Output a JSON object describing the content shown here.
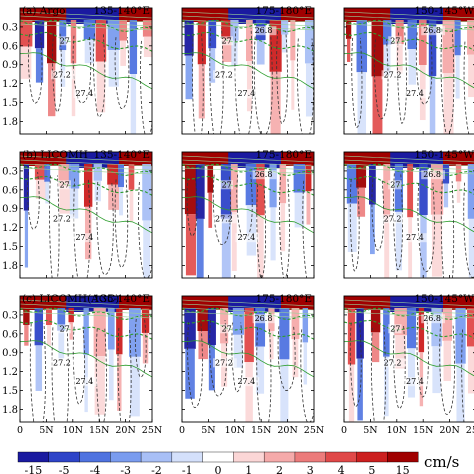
{
  "chart_data": {
    "type": "heatmap",
    "rows": [
      {
        "label": "(a) Argo",
        "contour_labels": [
          "26.8",
          "27",
          "27.2",
          "27.4"
        ]
      },
      {
        "label": "(b) LICOMH",
        "contour_labels": [
          "26.8",
          "27",
          "27.2",
          "27.4"
        ]
      },
      {
        "label": "(c) LICOMH(AGC)",
        "contour_labels": [
          "26.8",
          "27",
          "27.2",
          "27.4"
        ]
      }
    ],
    "columns": [
      {
        "title": "135-140°E"
      },
      {
        "title": "175-180°E"
      },
      {
        "title": "150-145°W"
      }
    ],
    "y_ticks": [
      "0.3",
      "0.6",
      "0.9",
      "1.2",
      "1.5",
      "1.8"
    ],
    "y_range": [
      0,
      2.0
    ],
    "x_ticks": [
      "0",
      "5N",
      "10N",
      "15N",
      "20N",
      "25N"
    ],
    "x_range": [
      0,
      25
    ],
    "colorbar": {
      "ticks": [
        "-15",
        "-5",
        "-4",
        "-3",
        "-2",
        "-1",
        "0",
        "1",
        "2",
        "3",
        "4",
        "5",
        "15"
      ],
      "colors": [
        "#1a1aa0",
        "#2e44c8",
        "#4f73e0",
        "#7a9cef",
        "#a8bff6",
        "#d4e0fb",
        "#ffffff",
        "#fbd6d6",
        "#f5aaaa",
        "#ec7b7b",
        "#e04848",
        "#cc1f1f",
        "#a00000"
      ],
      "unit": "cm/s"
    }
  }
}
